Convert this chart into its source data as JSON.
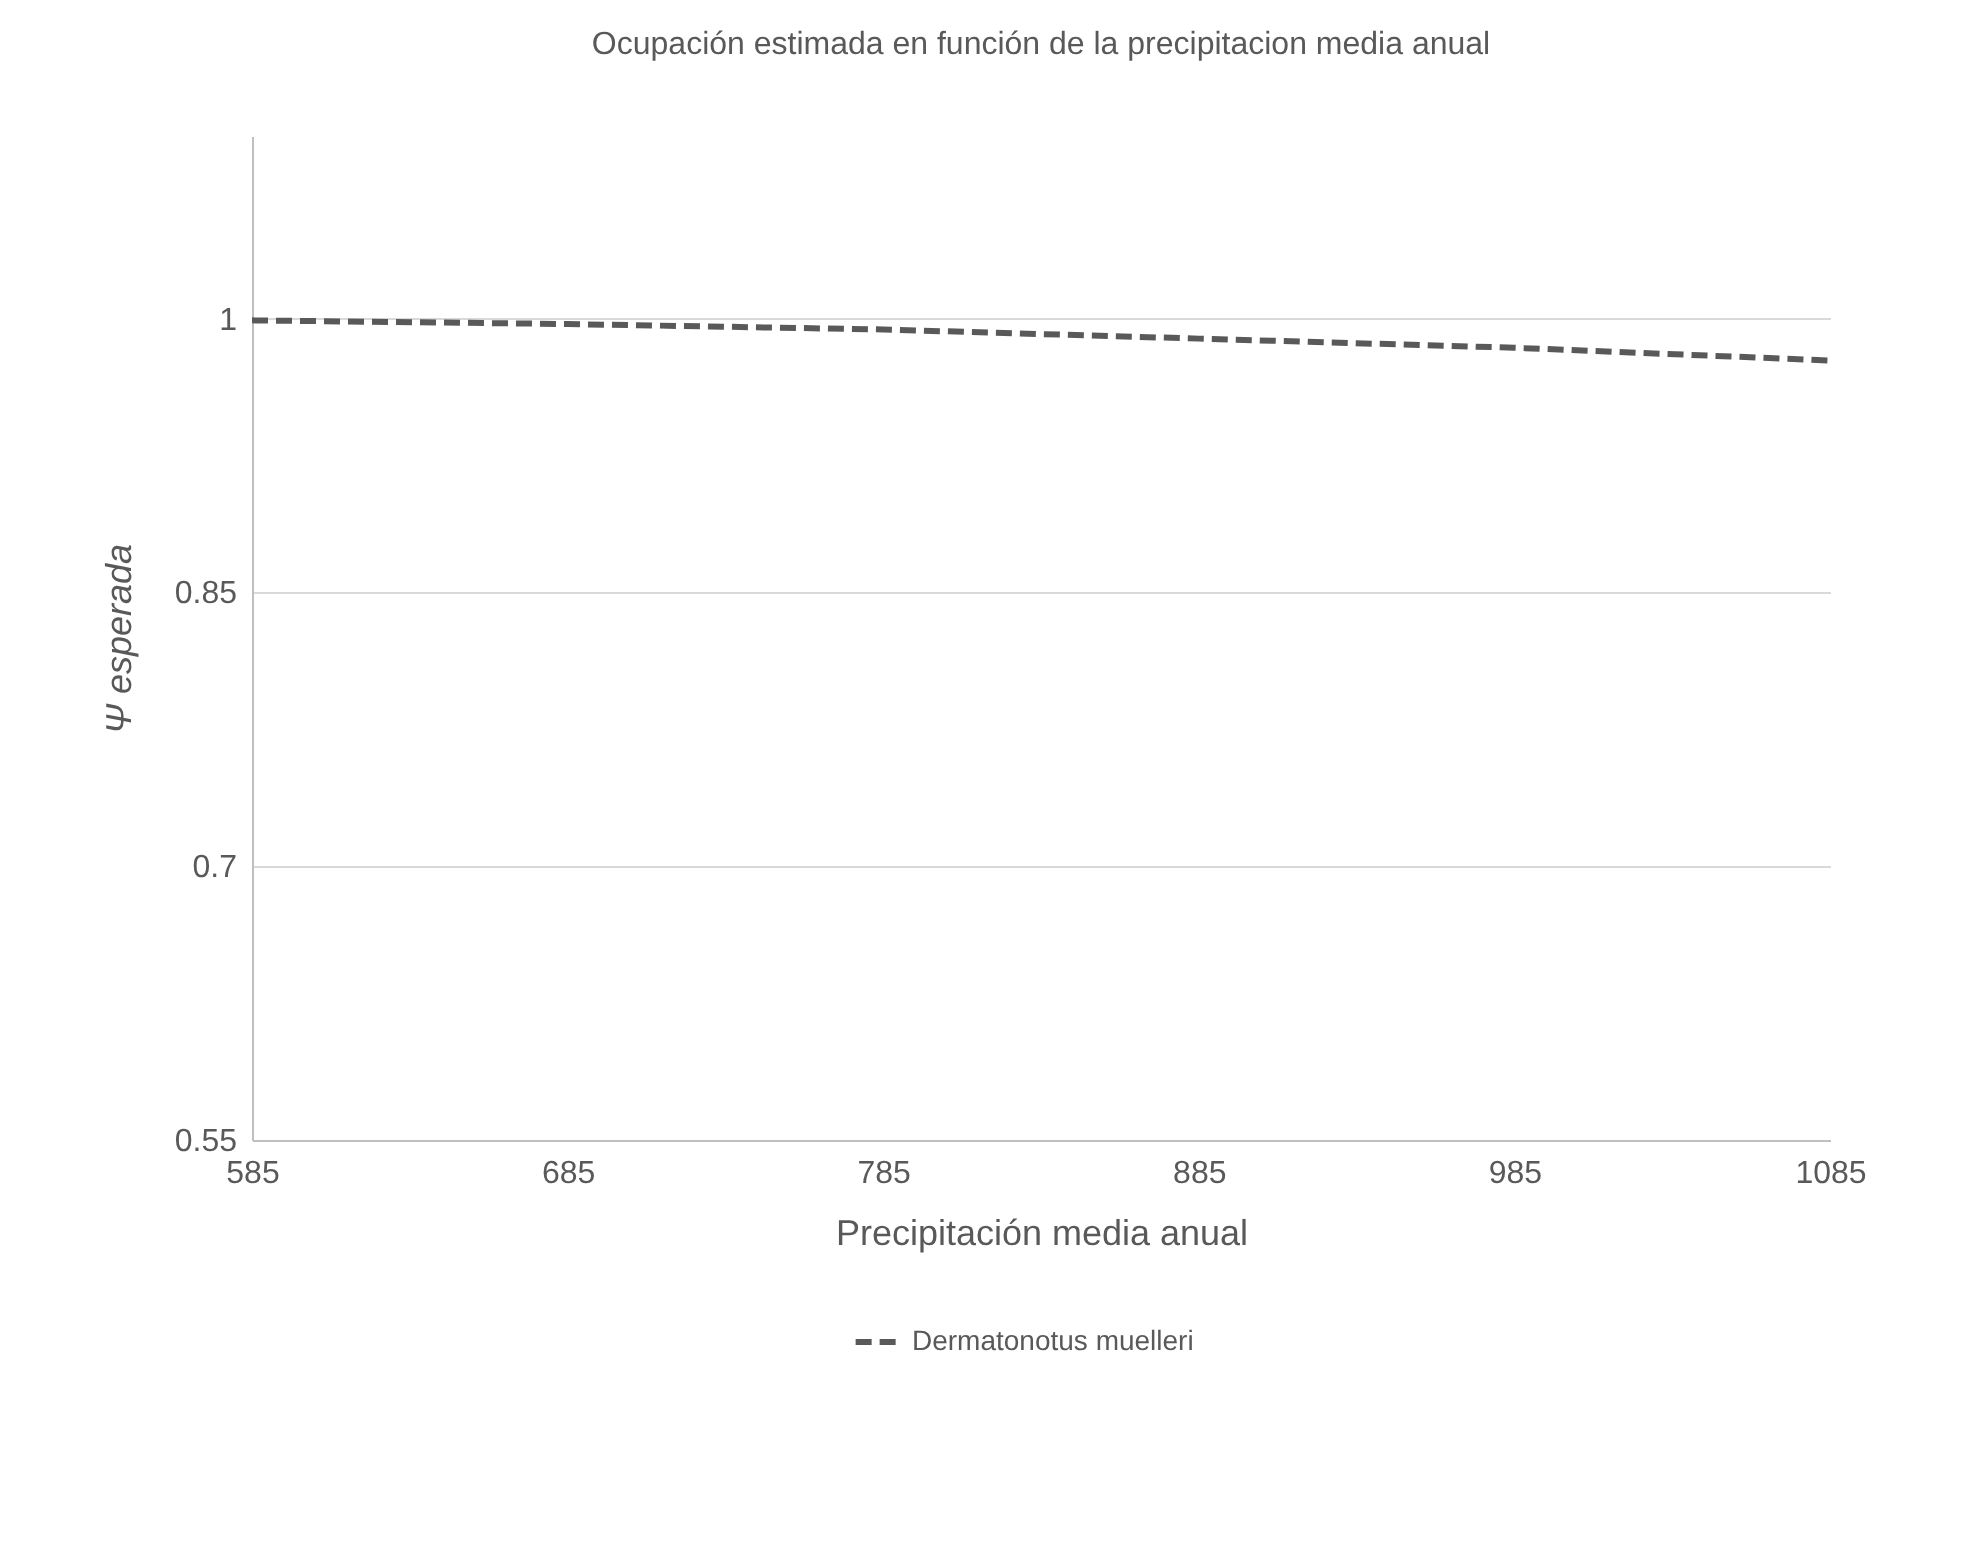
{
  "chart_data": {
    "type": "line",
    "title": "Ocupación estimada en función de la precipitacion media anual",
    "xlabel": "Precipitación media anual",
    "ylabel": "Ψ esperada",
    "x": [
      585,
      685,
      785,
      885,
      985,
      1085
    ],
    "series": [
      {
        "name": "Dermatonotus muelleri",
        "color": "#595959",
        "values": [
          0.999,
          0.997,
          0.994,
          0.989,
          0.984,
          0.977
        ]
      }
    ],
    "xlim": [
      585,
      1085
    ],
    "xticks": [
      585,
      685,
      785,
      885,
      985,
      1085
    ],
    "ylim": [
      0.55,
      1.1
    ],
    "yticks": [
      0.55,
      0.7,
      0.85,
      1
    ],
    "grid": "y",
    "legend": "bottom",
    "line_style": "dashed",
    "marker": "none"
  }
}
